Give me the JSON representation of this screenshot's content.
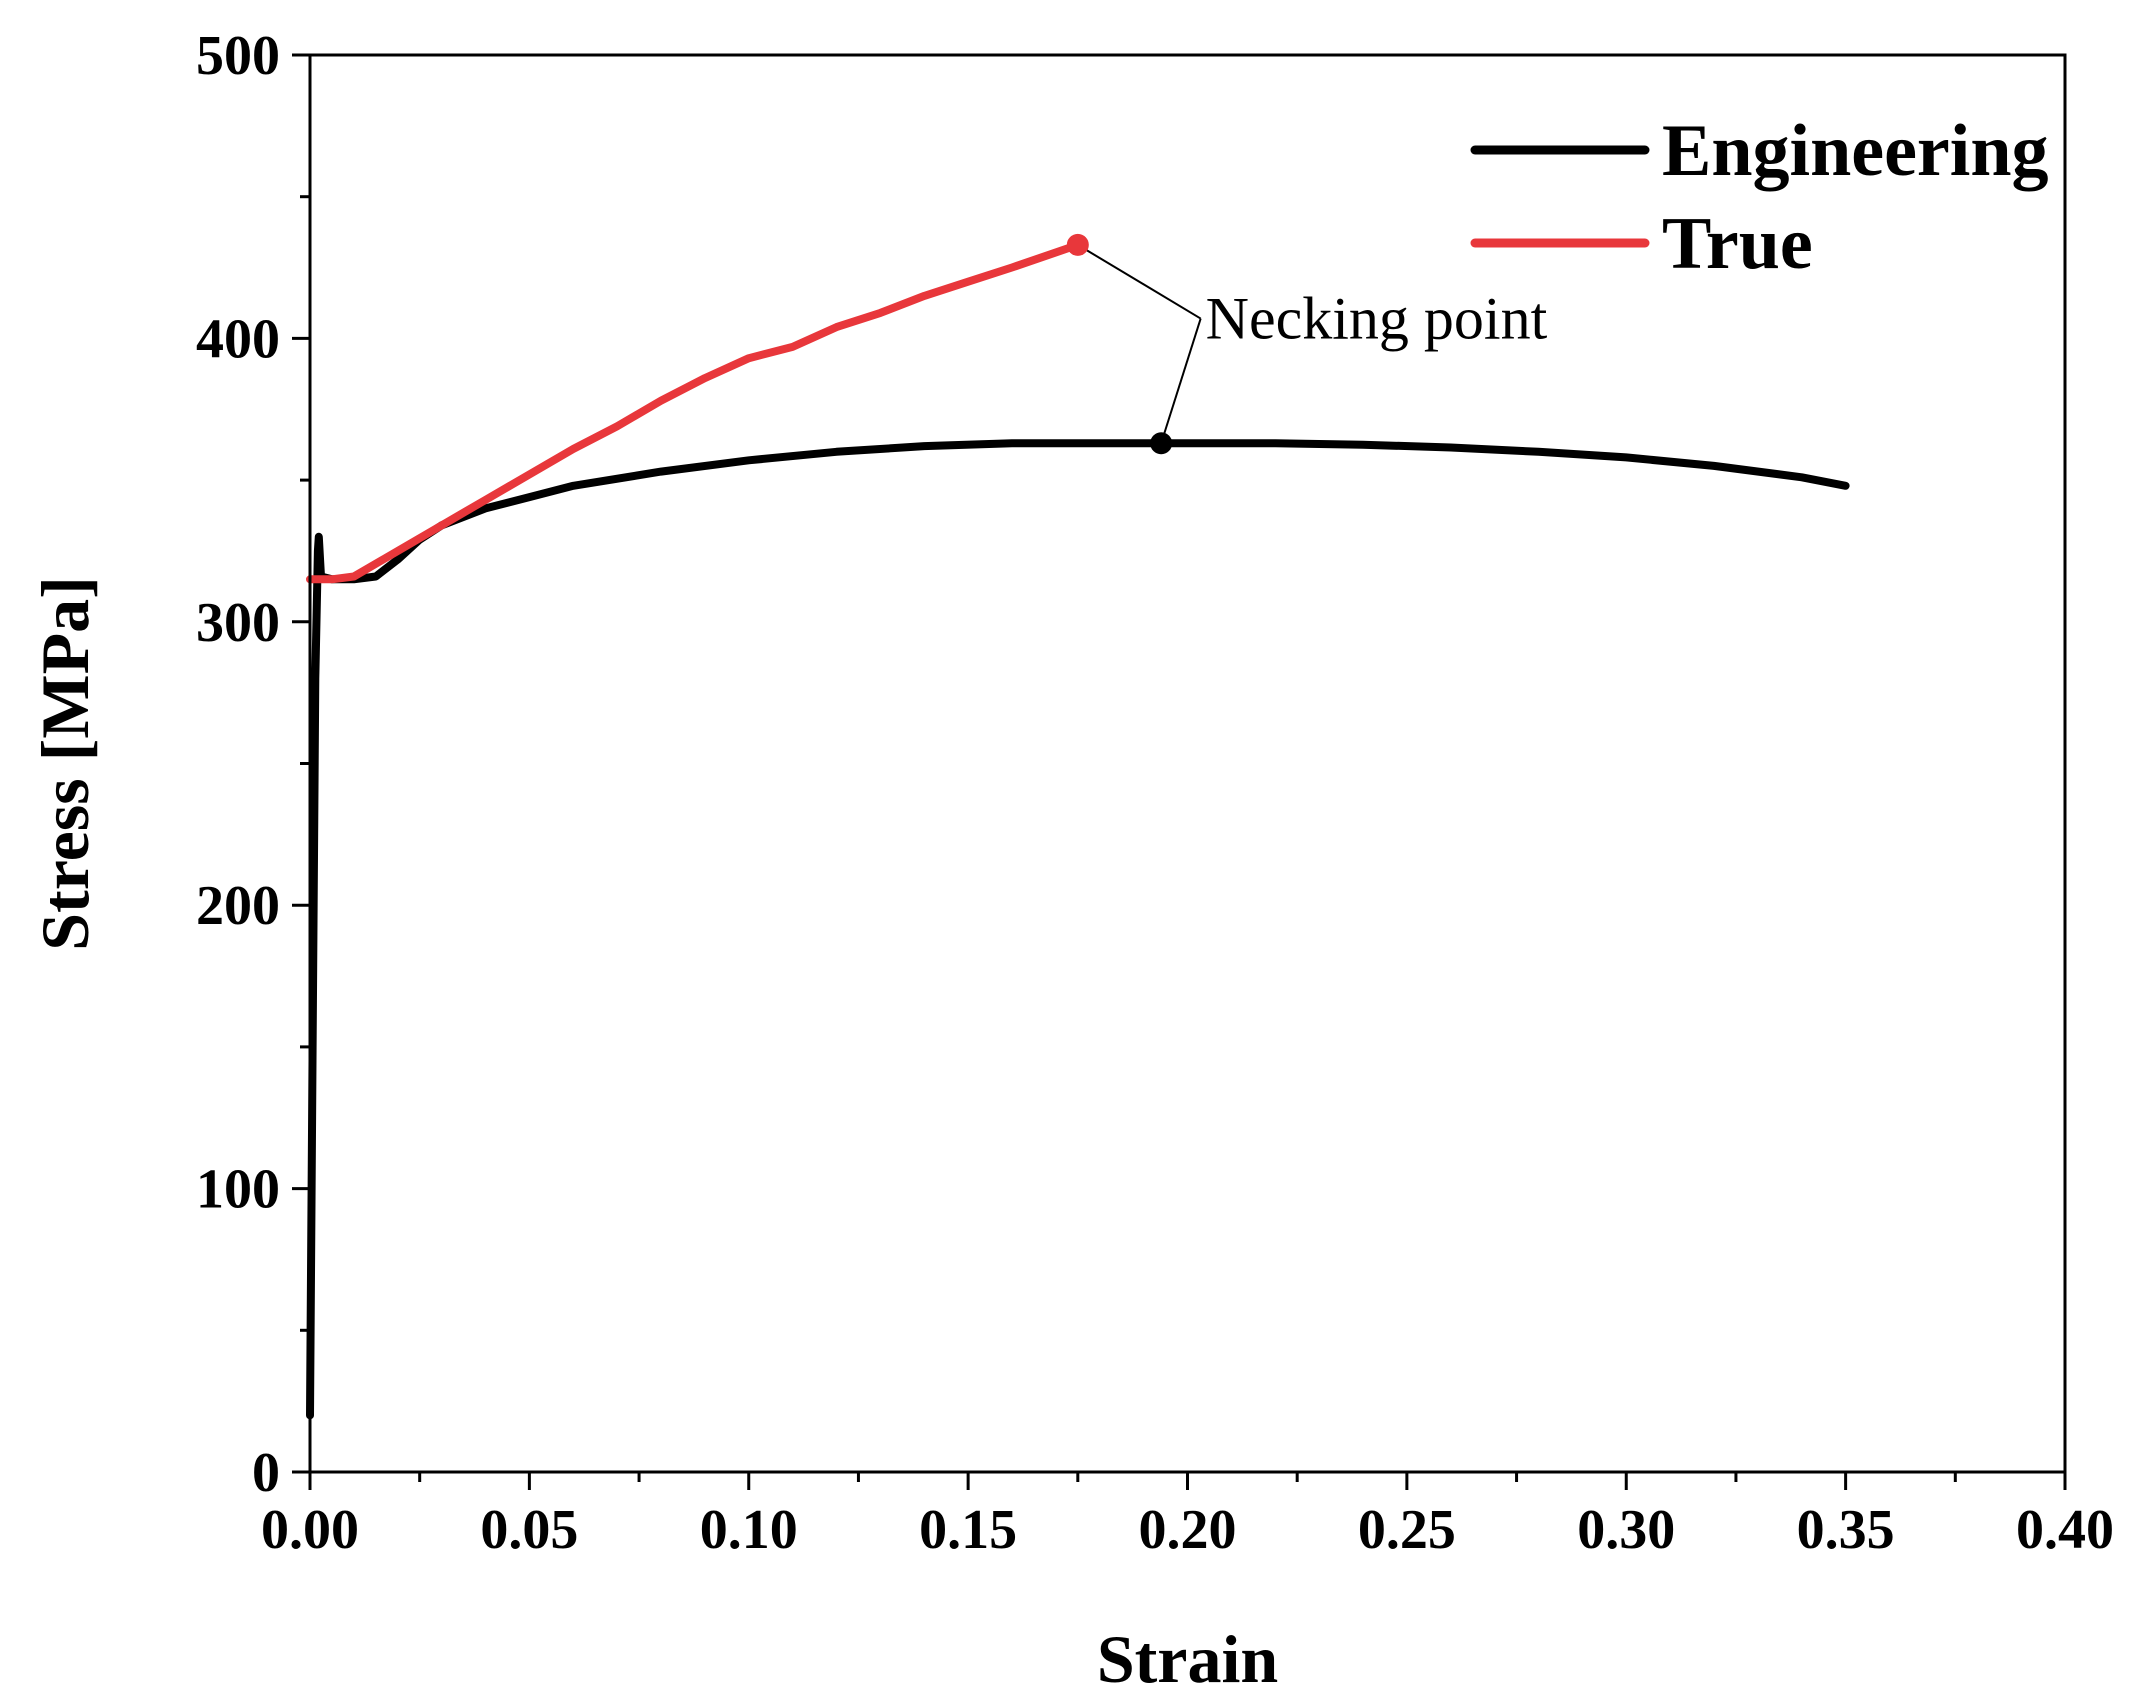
{
  "chart_data": {
    "type": "line",
    "title": "",
    "xlabel": "Strain",
    "ylabel": "Stress [MPa]",
    "xlim": [
      0,
      0.4
    ],
    "ylim": [
      0,
      500
    ],
    "grid": false,
    "legend_position": "top-right",
    "x_ticks": [
      0,
      0.05,
      0.1,
      0.15,
      0.2,
      0.25,
      0.3,
      0.35,
      0.4
    ],
    "x_tick_labels": [
      "0.00",
      "0.05",
      "0.10",
      "0.15",
      "0.20",
      "0.25",
      "0.30",
      "0.35",
      "0.40"
    ],
    "x_minor_ticks": [
      0.025,
      0.075,
      0.125,
      0.175,
      0.225,
      0.275,
      0.325,
      0.375
    ],
    "y_ticks": [
      0,
      100,
      200,
      300,
      400,
      500
    ],
    "y_tick_labels": [
      "0",
      "100",
      "200",
      "300",
      "400",
      "500"
    ],
    "y_minor_ticks": [
      50,
      150,
      250,
      350,
      450
    ],
    "series": [
      {
        "name": "Engineering",
        "color": "#000000",
        "x": [
          0.0,
          0.0006,
          0.0012,
          0.0018,
          0.002,
          0.0025,
          0.005,
          0.01,
          0.015,
          0.02,
          0.025,
          0.03,
          0.04,
          0.05,
          0.06,
          0.08,
          0.1,
          0.12,
          0.14,
          0.16,
          0.18,
          0.194,
          0.2,
          0.22,
          0.24,
          0.26,
          0.28,
          0.3,
          0.32,
          0.34,
          0.35
        ],
        "values": [
          20,
          150,
          280,
          325,
          330,
          316,
          315,
          315,
          316,
          322,
          329,
          334,
          340,
          344,
          348,
          353,
          357,
          360,
          362,
          363,
          363,
          363,
          363,
          363,
          362.5,
          361.5,
          360,
          358,
          355,
          351,
          348
        ]
      },
      {
        "name": "True",
        "color": "#e8373b",
        "x": [
          0.0,
          0.005,
          0.01,
          0.02,
          0.03,
          0.04,
          0.05,
          0.06,
          0.07,
          0.08,
          0.09,
          0.1,
          0.11,
          0.12,
          0.13,
          0.14,
          0.15,
          0.16,
          0.175
        ],
        "values": [
          315,
          315,
          316,
          325,
          334,
          343,
          352,
          361,
          369,
          378,
          386,
          393,
          397,
          404,
          409,
          415,
          420,
          425,
          433
        ]
      }
    ],
    "annotations": [
      {
        "text": "Necking point",
        "points": [
          {
            "series": "True",
            "x": 0.175,
            "y": 433
          },
          {
            "series": "Engineering",
            "x": 0.194,
            "y": 363
          }
        ]
      }
    ]
  }
}
